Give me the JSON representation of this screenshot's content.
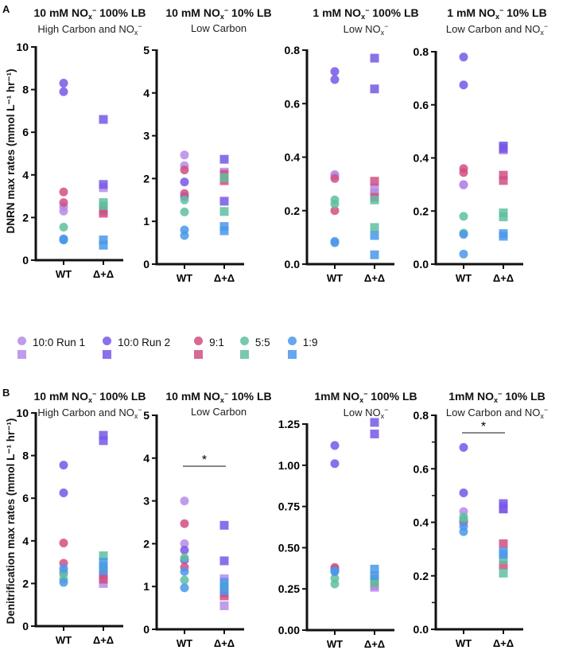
{
  "panel_letters": [
    "A",
    "B"
  ],
  "legend": [
    {
      "name": "10:0 Run 1",
      "color": "#b58be8"
    },
    {
      "name": "10:0 Run 2",
      "color": "#7658e6"
    },
    {
      "name": "9:1",
      "color": "#d14f82"
    },
    {
      "name": "5:5",
      "color": "#5fbf9f"
    },
    {
      "name": "1:9",
      "color": "#4a98ea"
    }
  ],
  "ylabels": {
    "A": "DNRN max rates (mmol L⁻¹ hr⁻¹)",
    "B": "Denitrification max rates (mmol L⁻¹ hr⁻¹)"
  },
  "chart_data": [
    {
      "type": "scatter",
      "panel": "A",
      "title": {
        "pre": "10 mM NO",
        "sub": "x",
        "sup": "−",
        "post": "  100% LB"
      },
      "subtitle": {
        "pre": "High Carbon and NO",
        "sub": "x",
        "sup": "−",
        "post": ""
      },
      "ylim": [
        0,
        10
      ],
      "yticks": [
        0,
        2,
        4,
        6,
        8,
        10
      ],
      "ytick_labels": [
        "0",
        "2",
        "4",
        "6",
        "8",
        "10"
      ],
      "categories": [
        "WT",
        "Δ+Δ"
      ],
      "significance": null,
      "series": [
        {
          "name": "10:0 Run 1",
          "WT": [
            2.5,
            2.3
          ],
          "MUT": [
            3.4,
            2.3
          ]
        },
        {
          "name": "10:0 Run 2",
          "WT": [
            8.3,
            7.9
          ],
          "MUT": [
            6.6,
            3.55
          ]
        },
        {
          "name": "9:1",
          "WT": [
            3.2,
            2.7
          ],
          "MUT": [
            2.4,
            2.2
          ]
        },
        {
          "name": "5:5",
          "WT": [
            1.55,
            0.95
          ],
          "MUT": [
            2.7,
            2.55
          ]
        },
        {
          "name": "1:9",
          "WT": [
            1.0,
            0.95
          ],
          "MUT": [
            0.95,
            0.7
          ]
        }
      ]
    },
    {
      "type": "scatter",
      "panel": "A",
      "title": {
        "pre": "10 mM NO",
        "sub": "x",
        "sup": "−",
        "post": " 10% LB"
      },
      "subtitle": {
        "pre": "Low Carbon",
        "sub": "",
        "sup": "",
        "post": ""
      },
      "ylim": [
        0,
        5
      ],
      "yticks": [
        0,
        1,
        2,
        3,
        4,
        5
      ],
      "ytick_labels": [
        "0",
        "1",
        "2",
        "3",
        "4",
        "5"
      ],
      "categories": [
        "WT",
        "Δ+Δ"
      ],
      "significance": null,
      "series": [
        {
          "name": "10:0 Run 1",
          "WT": [
            2.55,
            2.3
          ],
          "MUT": [
            2.15,
            2.05
          ]
        },
        {
          "name": "10:0 Run 2",
          "WT": [
            1.92,
            1.58
          ],
          "MUT": [
            2.45,
            1.47
          ]
        },
        {
          "name": "9:1",
          "WT": [
            2.2,
            1.65
          ],
          "MUT": [
            2.1,
            1.95
          ]
        },
        {
          "name": "5:5",
          "WT": [
            1.5,
            1.22
          ],
          "MUT": [
            2.02,
            1.23
          ]
        },
        {
          "name": "1:9",
          "WT": [
            0.8,
            0.67
          ],
          "MUT": [
            0.88,
            0.78
          ]
        }
      ]
    },
    {
      "type": "scatter",
      "panel": "A",
      "title": {
        "pre": "1 mM NO",
        "sub": "x",
        "sup": "−",
        "post": " 100% LB"
      },
      "subtitle": {
        "pre": "Low NO",
        "sub": "x",
        "sup": "−",
        "post": ""
      },
      "ylim": [
        0,
        0.8
      ],
      "yticks": [
        0,
        0.2,
        0.4,
        0.6,
        0.8
      ],
      "ytick_labels": [
        "0.0",
        "0.2",
        "0.4",
        "0.6",
        "0.8"
      ],
      "categories": [
        "WT",
        "Δ+Δ"
      ],
      "significance": null,
      "series": [
        {
          "name": "10:0 Run 1",
          "WT": [
            0.335,
            0.33
          ],
          "MUT": [
            0.285,
            0.265
          ]
        },
        {
          "name": "10:0 Run 2",
          "WT": [
            0.72,
            0.69
          ],
          "MUT": [
            0.77,
            0.655
          ]
        },
        {
          "name": "9:1",
          "WT": [
            0.32,
            0.2
          ],
          "MUT": [
            0.31,
            0.25
          ]
        },
        {
          "name": "5:5",
          "WT": [
            0.24,
            0.225
          ],
          "MUT": [
            0.24,
            0.137
          ]
        },
        {
          "name": "1:9",
          "WT": [
            0.085,
            0.08
          ],
          "MUT": [
            0.107,
            0.035
          ]
        }
      ]
    },
    {
      "type": "scatter",
      "panel": "A",
      "title": {
        "pre": "1 mM NO",
        "sub": "x",
        "sup": "−",
        "post": " 10% LB"
      },
      "subtitle": {
        "pre": "Low Carbon and NO",
        "sub": "x",
        "sup": "−",
        "post": ""
      },
      "ylim": [
        0,
        0.8
      ],
      "yticks": [
        0,
        0.2,
        0.4,
        0.6,
        0.8
      ],
      "ytick_labels": [
        "0.0",
        "0.2",
        "0.4",
        "0.6",
        "0.8"
      ],
      "categories": [
        "WT",
        "Δ+Δ"
      ],
      "significance": null,
      "series": [
        {
          "name": "10:0 Run 1",
          "WT": [
            0.3,
            0.298
          ],
          "MUT": [
            0.44,
            0.43
          ]
        },
        {
          "name": "10:0 Run 2",
          "WT": [
            0.78,
            0.675
          ],
          "MUT": [
            0.445,
            0.435
          ]
        },
        {
          "name": "9:1",
          "WT": [
            0.36,
            0.345
          ],
          "MUT": [
            0.335,
            0.315
          ]
        },
        {
          "name": "5:5",
          "WT": [
            0.18,
            0.117
          ],
          "MUT": [
            0.193,
            0.178
          ]
        },
        {
          "name": "1:9",
          "WT": [
            0.112,
            0.038
          ],
          "MUT": [
            0.115,
            0.105
          ]
        }
      ]
    },
    {
      "type": "scatter",
      "panel": "B",
      "title": {
        "pre": "10 mM NO",
        "sub": "x",
        "sup": "−",
        "post": " 100% LB"
      },
      "subtitle": {
        "pre": "High Carbon and NO",
        "sub": "x",
        "sup": "−",
        "post": ""
      },
      "ylim": [
        0,
        10
      ],
      "yticks": [
        0,
        2,
        4,
        6,
        8,
        10
      ],
      "ytick_labels": [
        "0",
        "2",
        "4",
        "6",
        "8",
        "10"
      ],
      "categories": [
        "WT",
        "Δ+Δ"
      ],
      "significance": null,
      "series": [
        {
          "name": "10:0 Run 1",
          "WT": [
            2.55,
            2.5
          ],
          "MUT": [
            2.8,
            2.0
          ]
        },
        {
          "name": "10:0 Run 2",
          "WT": [
            7.55,
            6.25
          ],
          "MUT": [
            8.95,
            8.7
          ]
        },
        {
          "name": "9:1",
          "WT": [
            3.9,
            2.95
          ],
          "MUT": [
            2.4,
            2.2
          ]
        },
        {
          "name": "5:5",
          "WT": [
            2.45,
            2.2
          ],
          "MUT": [
            3.3,
            2.8
          ]
        },
        {
          "name": "1:9",
          "WT": [
            2.7,
            2.05
          ],
          "MUT": [
            3.0,
            2.6
          ]
        }
      ]
    },
    {
      "type": "scatter",
      "panel": "B",
      "title": {
        "pre": "10 mM NO",
        "sub": "x",
        "sup": "−",
        "post": " 10% LB"
      },
      "subtitle": {
        "pre": "Low Carbon",
        "sub": "",
        "sup": "",
        "post": ""
      },
      "ylim": [
        0,
        5
      ],
      "yticks": [
        0,
        1,
        2,
        3,
        4,
        5
      ],
      "ytick_labels": [
        "0",
        "1",
        "2",
        "3",
        "4",
        "5"
      ],
      "categories": [
        "WT",
        "Δ+Δ"
      ],
      "significance": "*",
      "series": [
        {
          "name": "10:0 Run 1",
          "WT": [
            3.0,
            2.0
          ],
          "MUT": [
            1.18,
            0.55
          ]
        },
        {
          "name": "10:0 Run 2",
          "WT": [
            1.85,
            1.62
          ],
          "MUT": [
            2.43,
            1.6
          ]
        },
        {
          "name": "9:1",
          "WT": [
            2.47,
            1.45
          ],
          "MUT": [
            0.85,
            0.78
          ]
        },
        {
          "name": "5:5",
          "WT": [
            1.67,
            1.15
          ],
          "MUT": [
            1.0,
            0.98
          ]
        },
        {
          "name": "1:9",
          "WT": [
            1.35,
            0.97
          ],
          "MUT": [
            1.1,
            0.9
          ]
        }
      ]
    },
    {
      "type": "scatter",
      "panel": "B",
      "title": {
        "pre": "1mM NO",
        "sub": "x",
        "sup": "−",
        "post": " 100% LB"
      },
      "subtitle": {
        "pre": "Low NO",
        "sub": "x",
        "sup": "−",
        "post": ""
      },
      "ylim": [
        0,
        1.3
      ],
      "yticks": [
        0,
        0.25,
        0.5,
        0.75,
        1.0,
        1.25
      ],
      "ytick_labels": [
        "0.00",
        "0.25",
        "0.50",
        "0.75",
        "1.00",
        "1.25"
      ],
      "categories": [
        "WT",
        "Δ+Δ"
      ],
      "significance": null,
      "series": [
        {
          "name": "10:0 Run 1",
          "WT": [
            0.37,
            0.36
          ],
          "MUT": [
            0.27,
            0.26
          ]
        },
        {
          "name": "10:0 Run 2",
          "WT": [
            1.12,
            1.01
          ],
          "MUT": [
            1.26,
            1.19
          ]
        },
        {
          "name": "9:1",
          "WT": [
            0.38,
            0.37
          ],
          "MUT": [
            0.3,
            0.29
          ]
        },
        {
          "name": "5:5",
          "WT": [
            0.315,
            0.28
          ],
          "MUT": [
            0.31,
            0.29
          ]
        },
        {
          "name": "1:9",
          "WT": [
            0.36,
            0.355
          ],
          "MUT": [
            0.37,
            0.33
          ]
        }
      ]
    },
    {
      "type": "scatter",
      "panel": "B",
      "title": {
        "pre": "1mM NO",
        "sub": "x",
        "sup": "−",
        "post": " 10% LB"
      },
      "subtitle": {
        "pre": "Low Carbon and NO",
        "sub": "x",
        "sup": "−",
        "post": ""
      },
      "ylim": [
        0,
        0.8
      ],
      "yticks": [
        0,
        0.2,
        0.4,
        0.6,
        0.8
      ],
      "ytick_labels": [
        "0.0",
        "0.2",
        "0.4",
        "0.6",
        "0.8"
      ],
      "minor_yticks": [
        0.1,
        0.3,
        0.5,
        0.7
      ],
      "categories": [
        "WT",
        "Δ+Δ"
      ],
      "significance": "*",
      "series": [
        {
          "name": "10:0 Run 1",
          "WT": [
            0.44,
            0.41
          ],
          "MUT": [
            0.46,
            0.45
          ]
        },
        {
          "name": "10:0 Run 2",
          "WT": [
            0.68,
            0.51
          ],
          "MUT": [
            0.47,
            0.45
          ]
        },
        {
          "name": "9:1",
          "WT": [
            0.405,
            0.4
          ],
          "MUT": [
            0.32,
            0.24
          ]
        },
        {
          "name": "5:5",
          "WT": [
            0.42,
            0.41
          ],
          "MUT": [
            0.26,
            0.21
          ]
        },
        {
          "name": "1:9",
          "WT": [
            0.385,
            0.365
          ],
          "MUT": [
            0.29,
            0.28
          ]
        }
      ]
    }
  ]
}
